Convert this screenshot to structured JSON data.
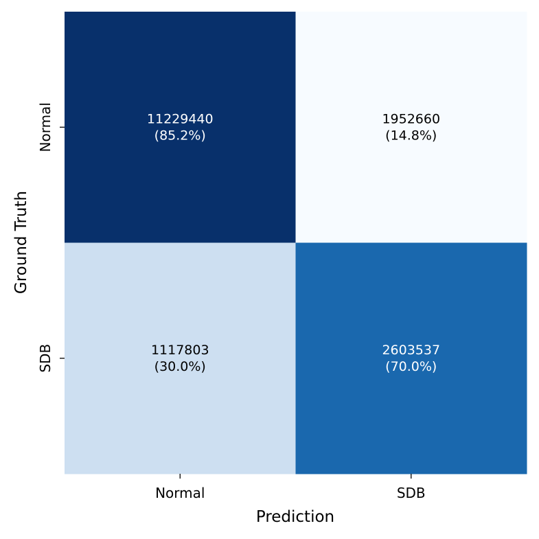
{
  "chart_data": {
    "type": "heatmap",
    "title": "",
    "xlabel": "Prediction",
    "ylabel": "Ground Truth",
    "x_categories": [
      "Normal",
      "SDB"
    ],
    "y_categories": [
      "Normal",
      "SDB"
    ],
    "matrix": [
      [
        11229440,
        1952660
      ],
      [
        1117803,
        2603537
      ]
    ],
    "labels": [
      [
        {
          "count": "11229440",
          "percent": "(85.2%)"
        },
        {
          "count": "1952660",
          "percent": "(14.8%)"
        }
      ],
      [
        {
          "count": "1117803",
          "percent": "(30.0%)"
        },
        {
          "count": "2603537",
          "percent": "(70.0%)"
        }
      ]
    ],
    "color_values": [
      [
        85.2,
        14.8
      ],
      [
        30.0,
        70.0
      ]
    ],
    "colormap": "Blues",
    "colorbar": false,
    "grid": false
  }
}
